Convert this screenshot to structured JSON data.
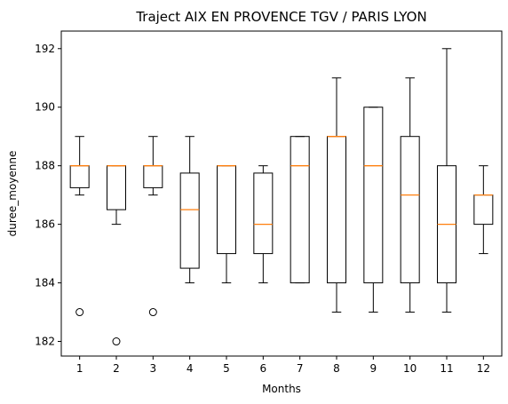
{
  "chart_data": {
    "type": "box",
    "title": "Traject AIX EN PROVENCE TGV / PARIS LYON",
    "xlabel": "Months",
    "ylabel": "duree_moyenne",
    "categories": [
      "1",
      "2",
      "3",
      "4",
      "5",
      "6",
      "7",
      "8",
      "9",
      "10",
      "11",
      "12"
    ],
    "yticks": [
      "182",
      "184",
      "186",
      "188",
      "190",
      "192"
    ],
    "ylim": [
      181.5,
      192.6
    ],
    "boxes": [
      {
        "month": "1",
        "whisker_low": 187,
        "q1": 187.25,
        "median": 188,
        "q3": 188,
        "whisker_high": 189,
        "outliers": [
          183
        ]
      },
      {
        "month": "2",
        "whisker_low": 186,
        "q1": 186.5,
        "median": 188,
        "q3": 188,
        "whisker_high": 188,
        "outliers": [
          182
        ]
      },
      {
        "month": "3",
        "whisker_low": 187,
        "q1": 187.25,
        "median": 188,
        "q3": 188,
        "whisker_high": 189,
        "outliers": [
          183
        ]
      },
      {
        "month": "4",
        "whisker_low": 184,
        "q1": 184.5,
        "median": 186.5,
        "q3": 187.75,
        "whisker_high": 189,
        "outliers": []
      },
      {
        "month": "5",
        "whisker_low": 184,
        "q1": 185,
        "median": 188,
        "q3": 188,
        "whisker_high": 188,
        "outliers": []
      },
      {
        "month": "6",
        "whisker_low": 184,
        "q1": 185,
        "median": 186,
        "q3": 187.75,
        "whisker_high": 188,
        "outliers": []
      },
      {
        "month": "7",
        "whisker_low": 184,
        "q1": 184,
        "median": 188,
        "q3": 189,
        "whisker_high": 189,
        "outliers": []
      },
      {
        "month": "8",
        "whisker_low": 183,
        "q1": 184,
        "median": 189,
        "q3": 189,
        "whisker_high": 191,
        "outliers": []
      },
      {
        "month": "9",
        "whisker_low": 183,
        "q1": 184,
        "median": 188,
        "q3": 190,
        "whisker_high": 190,
        "outliers": []
      },
      {
        "month": "10",
        "whisker_low": 183,
        "q1": 184,
        "median": 187,
        "q3": 189,
        "whisker_high": 191,
        "outliers": []
      },
      {
        "month": "11",
        "whisker_low": 183,
        "q1": 184,
        "median": 186,
        "q3": 188,
        "whisker_high": 192,
        "outliers": []
      },
      {
        "month": "12",
        "whisker_low": 185,
        "q1": 186,
        "median": 187,
        "q3": 187,
        "whisker_high": 188,
        "outliers": []
      }
    ],
    "colors": {
      "box": "#000000",
      "median": "#ff7f0e",
      "background": "#ffffff"
    },
    "grid": false,
    "legend": "none"
  }
}
